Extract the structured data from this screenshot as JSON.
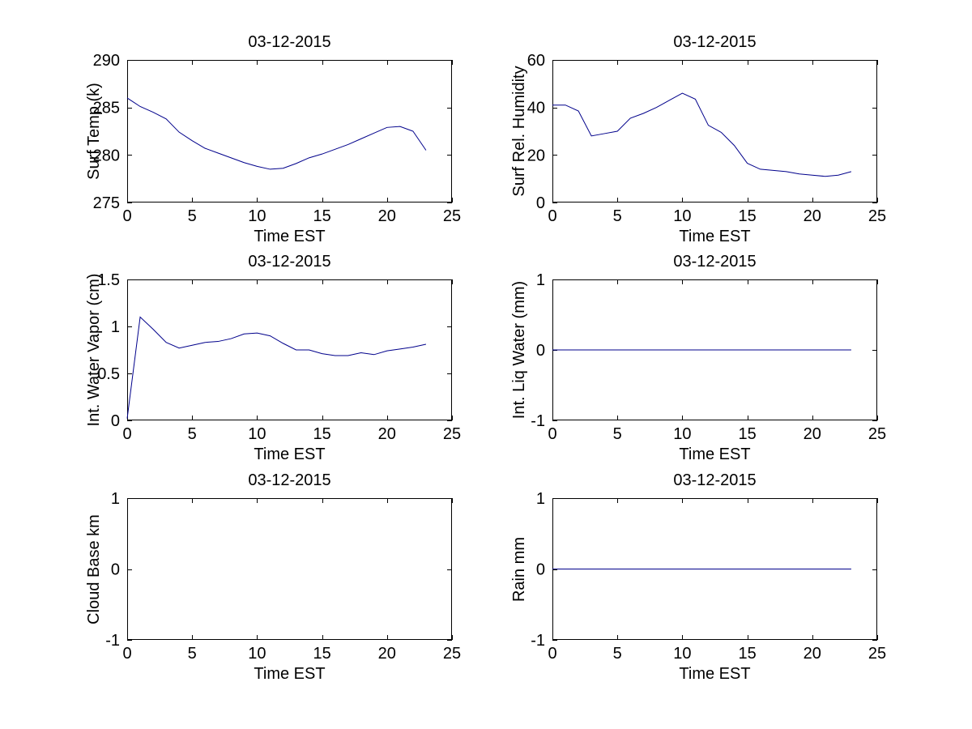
{
  "figure": {
    "background_color": "#ffffff",
    "axis_color": "#000000",
    "line_color": "#00008b",
    "date_shown": "03-12-2015"
  },
  "chart_data": [
    {
      "type": "line",
      "title": "03-12-2015",
      "xlabel": "Time EST",
      "ylabel": "Surf Temp (k)",
      "xlim": [
        0,
        25
      ],
      "ylim": [
        275,
        290
      ],
      "xticks": [
        0,
        5,
        10,
        15,
        20,
        25
      ],
      "yticks": [
        275,
        280,
        285,
        290
      ],
      "grid": false,
      "x": [
        0,
        1,
        2,
        3,
        4,
        5,
        6,
        7,
        8,
        9,
        10,
        11,
        12,
        13,
        14,
        15,
        16,
        17,
        18,
        19,
        20,
        21,
        22,
        23
      ],
      "y": [
        286,
        285.1,
        284.5,
        283.8,
        282.4,
        281.5,
        280.7,
        280.2,
        279.7,
        279.2,
        278.8,
        278.5,
        278.6,
        279.1,
        279.7,
        280.1,
        280.6,
        281.1,
        281.7,
        282.3,
        282.9,
        283,
        282.5,
        280.5
      ]
    },
    {
      "type": "line",
      "title": "03-12-2015",
      "xlabel": "Time EST",
      "ylabel": "Surf Rel. Humidity",
      "xlim": [
        0,
        25
      ],
      "ylim": [
        0,
        60
      ],
      "xticks": [
        0,
        5,
        10,
        15,
        20,
        25
      ],
      "yticks": [
        0,
        20,
        40,
        60
      ],
      "grid": false,
      "x": [
        0,
        1,
        2,
        3,
        4,
        5,
        6,
        7,
        8,
        9,
        10,
        11,
        12,
        13,
        14,
        15,
        16,
        17,
        18,
        19,
        20,
        21,
        22,
        23
      ],
      "y": [
        41,
        41,
        38.5,
        28,
        29,
        30,
        35.5,
        37.5,
        40,
        43,
        46,
        43.5,
        32.5,
        29.5,
        24,
        16.5,
        14,
        13.5,
        13,
        12,
        11.5,
        11,
        11.5,
        13
      ]
    },
    {
      "type": "line",
      "title": "03-12-2015",
      "xlabel": "Time EST",
      "ylabel": "Int. Water Vapor (cm)",
      "xlim": [
        0,
        25
      ],
      "ylim": [
        0,
        1.5
      ],
      "xticks": [
        0,
        5,
        10,
        15,
        20,
        25
      ],
      "yticks": [
        0,
        0.5,
        1,
        1.5
      ],
      "grid": false,
      "x": [
        0,
        1,
        2,
        3,
        4,
        5,
        6,
        7,
        8,
        9,
        10,
        11,
        12,
        13,
        14,
        15,
        16,
        17,
        18,
        19,
        20,
        21,
        22,
        23
      ],
      "y": [
        0.02,
        1.1,
        0.97,
        0.83,
        0.77,
        0.8,
        0.83,
        0.84,
        0.87,
        0.92,
        0.93,
        0.9,
        0.82,
        0.75,
        0.75,
        0.71,
        0.69,
        0.69,
        0.72,
        0.7,
        0.74,
        0.76,
        0.78,
        0.81
      ]
    },
    {
      "type": "line",
      "title": "03-12-2015",
      "xlabel": "Time EST",
      "ylabel": "Int. Liq Water (mm)",
      "xlim": [
        0,
        25
      ],
      "ylim": [
        -1,
        1
      ],
      "xticks": [
        0,
        5,
        10,
        15,
        20,
        25
      ],
      "yticks": [
        -1,
        0,
        1
      ],
      "grid": false,
      "x": [
        0,
        1,
        2,
        3,
        4,
        5,
        6,
        7,
        8,
        9,
        10,
        11,
        12,
        13,
        14,
        15,
        16,
        17,
        18,
        19,
        20,
        21,
        22,
        23
      ],
      "y": [
        0,
        0,
        0,
        0,
        0,
        0,
        0,
        0,
        0,
        0,
        0,
        0,
        0,
        0,
        0,
        0,
        0,
        0,
        0,
        0,
        0,
        0,
        0,
        0
      ]
    },
    {
      "type": "line",
      "title": "03-12-2015",
      "xlabel": "Time EST",
      "ylabel": "Cloud Base km",
      "xlim": [
        0,
        25
      ],
      "ylim": [
        -1,
        1
      ],
      "xticks": [
        0,
        5,
        10,
        15,
        20,
        25
      ],
      "yticks": [
        -1,
        0,
        1
      ],
      "grid": false,
      "x": [],
      "y": []
    },
    {
      "type": "line",
      "title": "03-12-2015",
      "xlabel": "Time EST",
      "ylabel": "Rain mm",
      "xlim": [
        0,
        25
      ],
      "ylim": [
        -1,
        1
      ],
      "xticks": [
        0,
        5,
        10,
        15,
        20,
        25
      ],
      "yticks": [
        -1,
        0,
        1
      ],
      "grid": false,
      "x": [
        0,
        1,
        2,
        3,
        4,
        5,
        6,
        7,
        8,
        9,
        10,
        11,
        12,
        13,
        14,
        15,
        16,
        17,
        18,
        19,
        20,
        21,
        22,
        23
      ],
      "y": [
        0,
        0,
        0,
        0,
        0,
        0,
        0,
        0,
        0,
        0,
        0,
        0,
        0,
        0,
        0,
        0,
        0,
        0,
        0,
        0,
        0,
        0,
        0,
        0
      ]
    }
  ]
}
